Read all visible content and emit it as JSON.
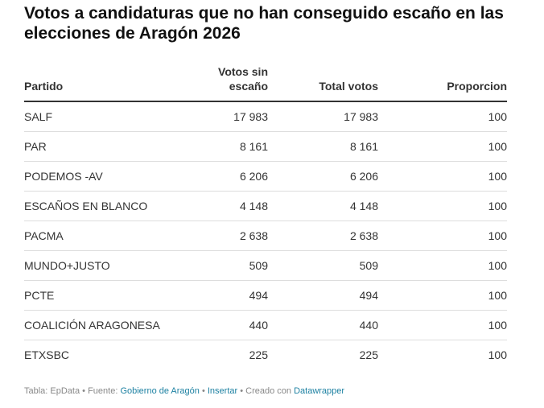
{
  "title": "Votos a candidaturas que no han conseguido escaño en las elecciones de Aragón 2026",
  "chart_data": {
    "type": "table",
    "columns": [
      "Partido",
      "Votos sin escaño",
      "Total votos",
      "Proporcion"
    ],
    "rows": [
      [
        "SALF",
        "17 983",
        "17 983",
        "100"
      ],
      [
        "PAR",
        "8 161",
        "8 161",
        "100"
      ],
      [
        "PODEMOS -AV",
        "6 206",
        "6 206",
        "100"
      ],
      [
        "ESCAÑOS EN BLANCO",
        "4 148",
        "4 148",
        "100"
      ],
      [
        "PACMA",
        "2 638",
        "2 638",
        "100"
      ],
      [
        "MUNDO+JUSTO",
        "509",
        "509",
        "100"
      ],
      [
        "PCTE",
        "494",
        "494",
        "100"
      ],
      [
        "COALICIÓN ARAGONESA",
        "440",
        "440",
        "100"
      ],
      [
        "ETXSBC",
        "225",
        "225",
        "100"
      ]
    ]
  },
  "footer": {
    "table_label": "Tabla: EpData",
    "sep": " • ",
    "source_label": "Fuente: ",
    "source_link": "Gobierno de Aragón",
    "embed": "Insertar",
    "created": "Creado con ",
    "dw": "Datawrapper"
  }
}
